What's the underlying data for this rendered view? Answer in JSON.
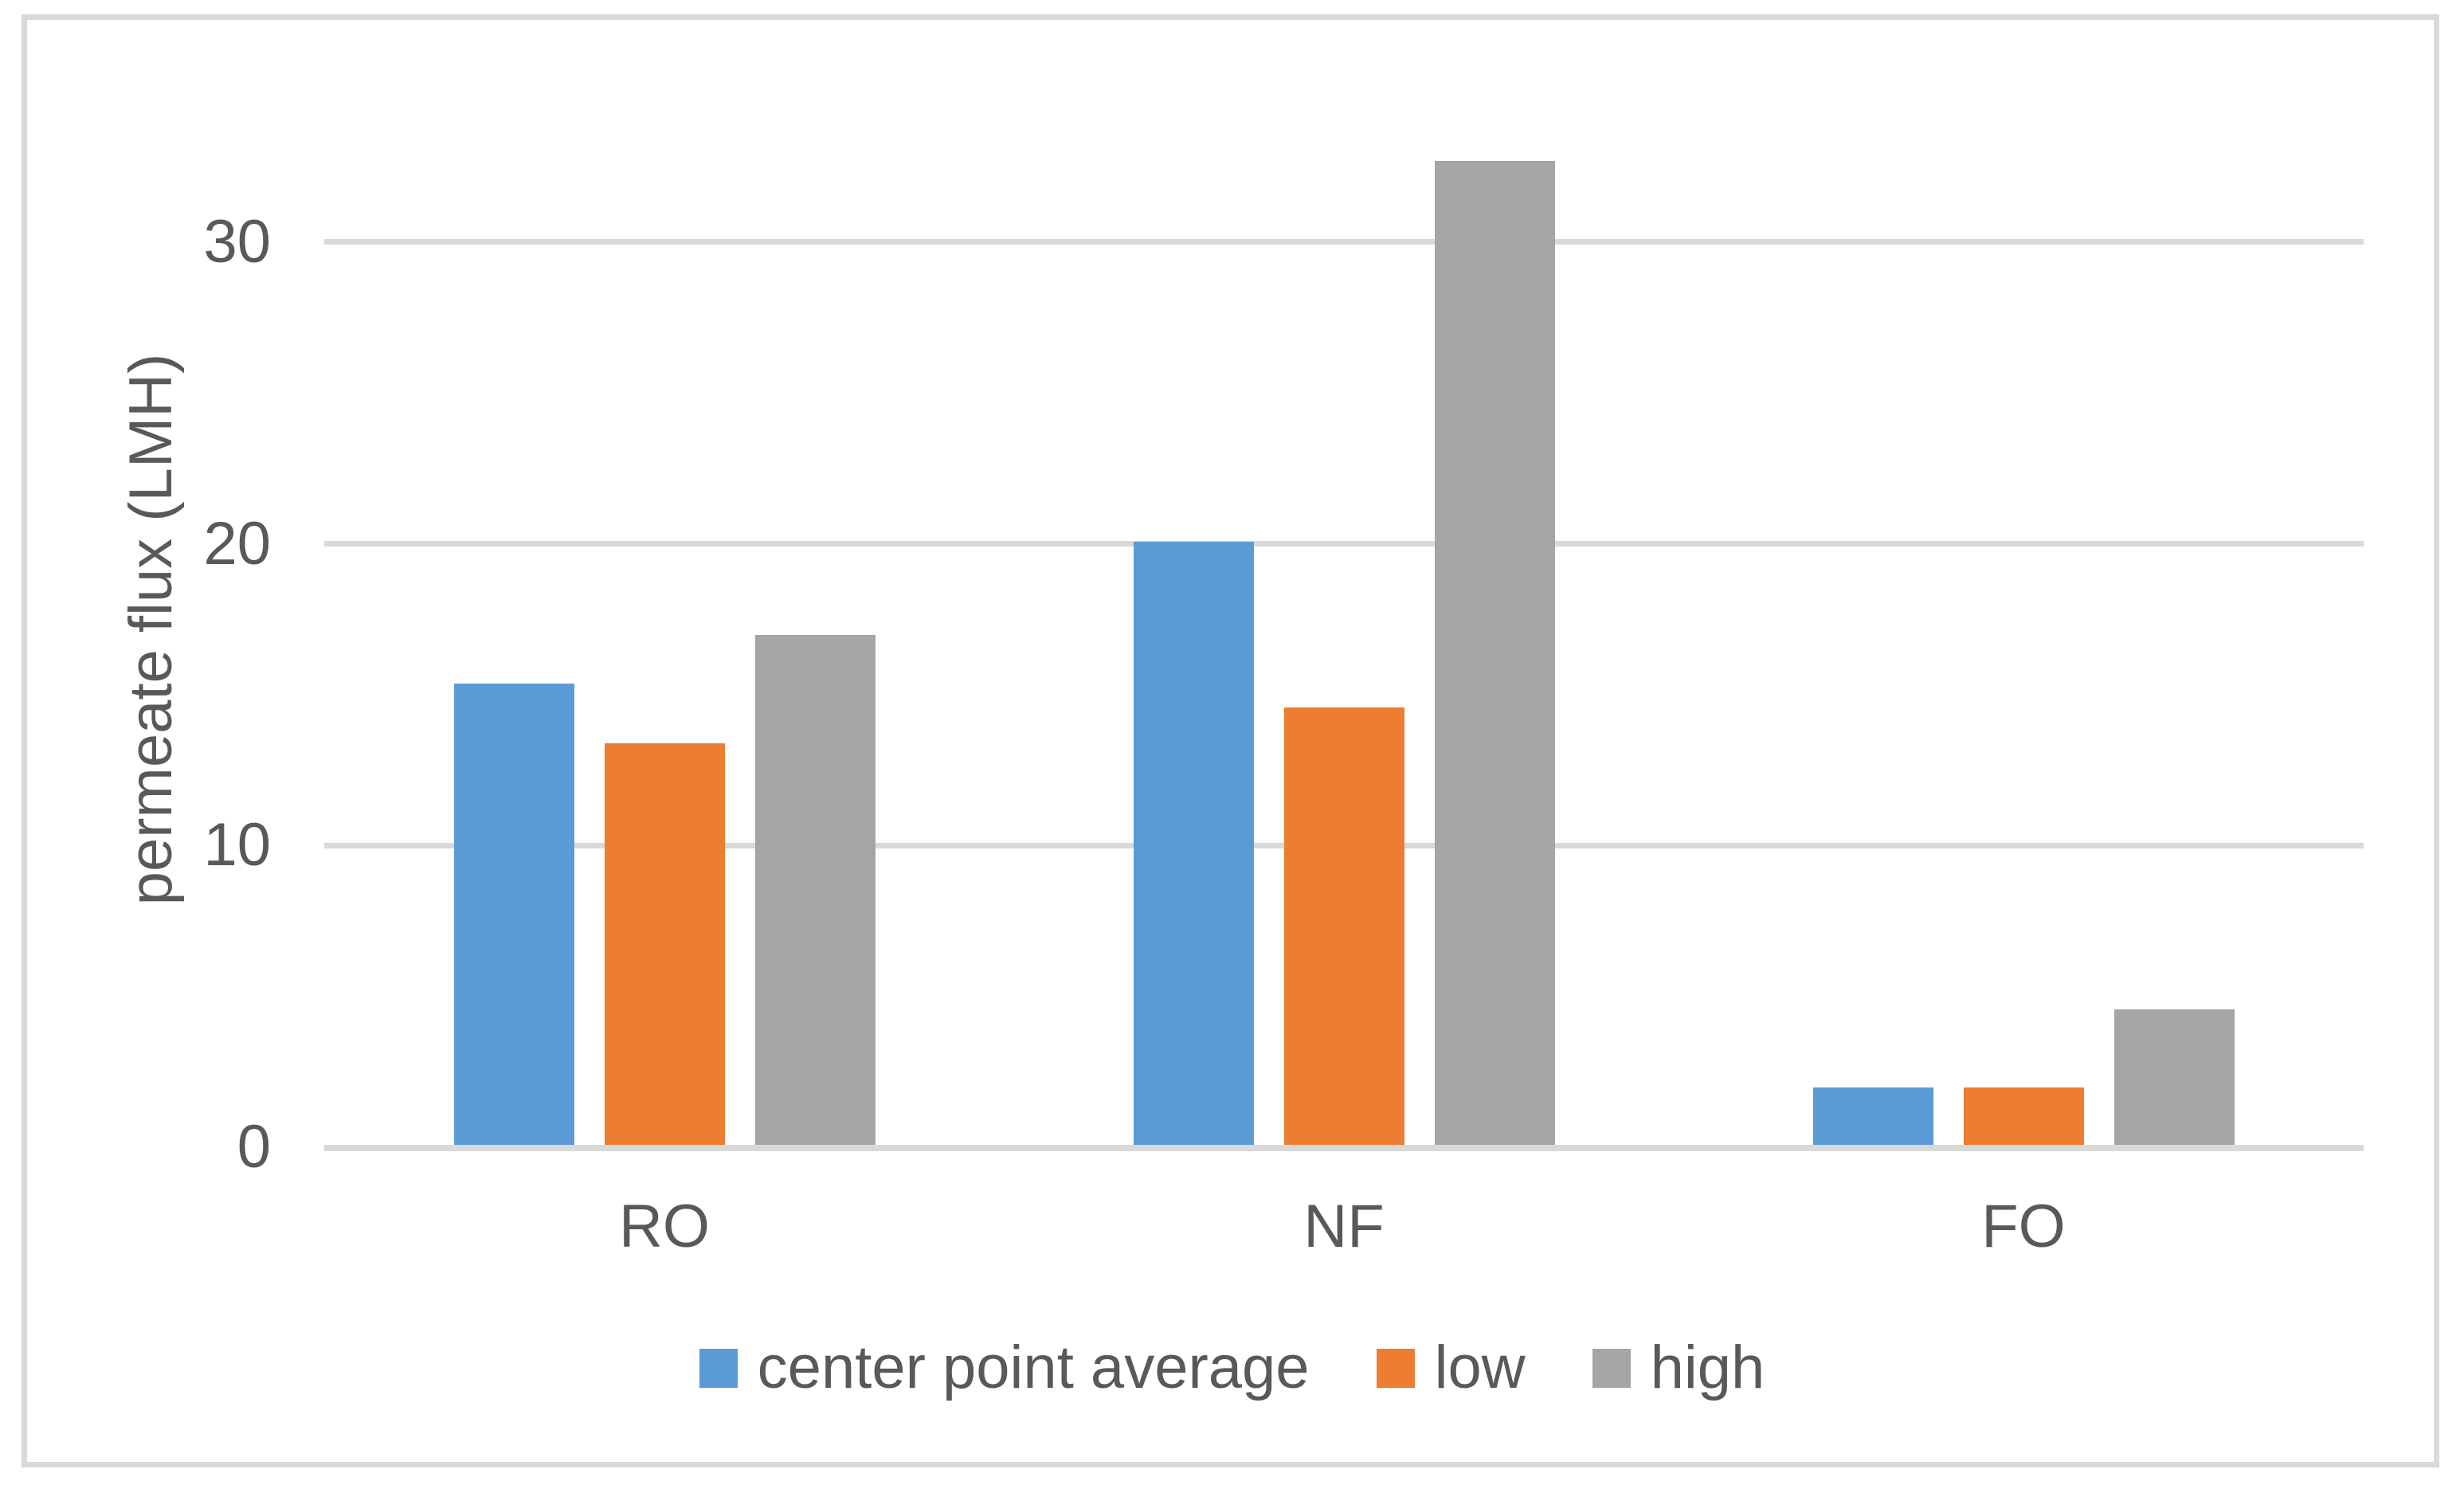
{
  "chart_data": {
    "type": "bar",
    "title": "",
    "categories": [
      "RO",
      "NF",
      "FO"
    ],
    "series": [
      {
        "name": "center point average",
        "color": "#5B9BD5",
        "values": [
          15.3,
          20.0,
          1.9
        ]
      },
      {
        "name": "low",
        "color": "#ED7D31",
        "values": [
          13.3,
          14.5,
          1.9
        ]
      },
      {
        "name": "high",
        "color": "#A5A5A5",
        "values": [
          16.9,
          32.6,
          4.5
        ]
      }
    ],
    "xlabel": "",
    "ylabel": "permeate flux (LMH)",
    "yticks": [
      0,
      10,
      20,
      30
    ],
    "ylim": [
      0,
      35
    ],
    "grid": "horizontal",
    "legend_position": "bottom"
  },
  "styles": {
    "text_color": "#595959",
    "gridline_color": "#D9D9D9",
    "axis_color": "#D9D9D9",
    "border_color": "#D9D9D9",
    "background": "#FFFFFF"
  }
}
